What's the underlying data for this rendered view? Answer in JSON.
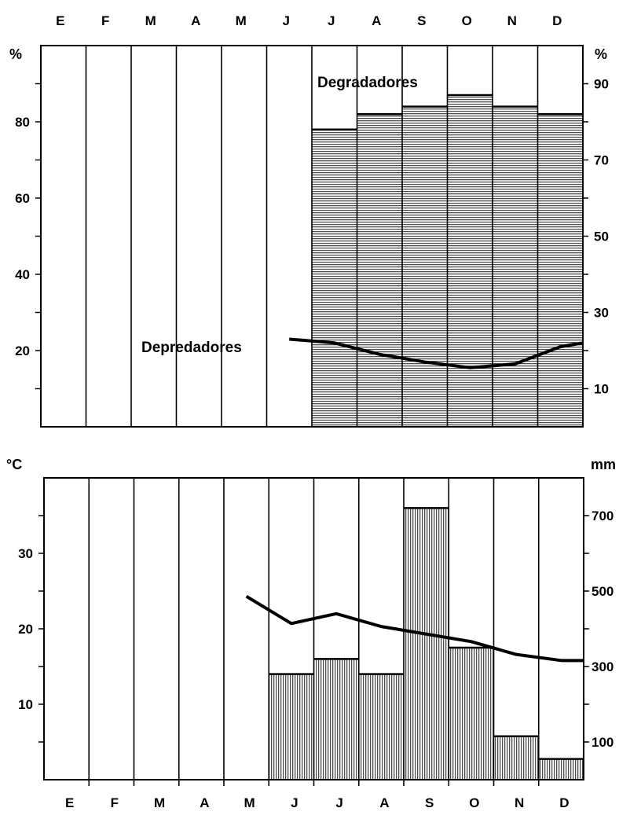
{
  "chart_data": [
    {
      "type": "bar",
      "categories": [
        "E",
        "F",
        "M",
        "A",
        "M",
        "J",
        "J",
        "A",
        "S",
        "O",
        "N",
        "D"
      ],
      "left_axis": {
        "label": "%",
        "ticks": [
          "20",
          "40",
          "60",
          "80"
        ],
        "range": [
          0,
          100
        ]
      },
      "right_axis": {
        "label": "%",
        "ticks": [
          "10",
          "30",
          "50",
          "70",
          "90"
        ],
        "range": [
          0,
          100
        ]
      },
      "series": [
        {
          "name": "Degradadores",
          "kind": "bar",
          "pattern": "horizontal-hatch",
          "values": [
            null,
            null,
            null,
            null,
            null,
            null,
            78,
            82,
            84,
            87,
            84,
            82
          ]
        },
        {
          "name": "Depredadores",
          "kind": "line",
          "values": [
            null,
            null,
            null,
            null,
            null,
            23,
            22,
            19,
            17,
            15.5,
            16.5,
            21
          ]
        }
      ],
      "annotations": [
        "Degradadores",
        "Depredadores"
      ]
    },
    {
      "type": "bar",
      "categories": [
        "E",
        "F",
        "M",
        "A",
        "M",
        "J",
        "J",
        "A",
        "S",
        "O",
        "N",
        "D"
      ],
      "left_axis": {
        "label": "°C",
        "ticks": [
          "10",
          "20",
          "30"
        ],
        "range": [
          0,
          40
        ]
      },
      "right_axis": {
        "label": "mm",
        "ticks": [
          "100",
          "300",
          "500",
          "700"
        ],
        "range": [
          0,
          800
        ]
      },
      "series": [
        {
          "kind": "bar",
          "pattern": "vertical-hatch",
          "axis": "right",
          "values": [
            null,
            null,
            null,
            null,
            null,
            280,
            320,
            280,
            720,
            350,
            115,
            55
          ]
        },
        {
          "kind": "line",
          "axis": "left",
          "values": [
            null,
            null,
            null,
            null,
            24.3,
            20.7,
            22,
            20.3,
            19.3,
            18.3,
            16.6,
            15.8
          ]
        }
      ]
    }
  ]
}
